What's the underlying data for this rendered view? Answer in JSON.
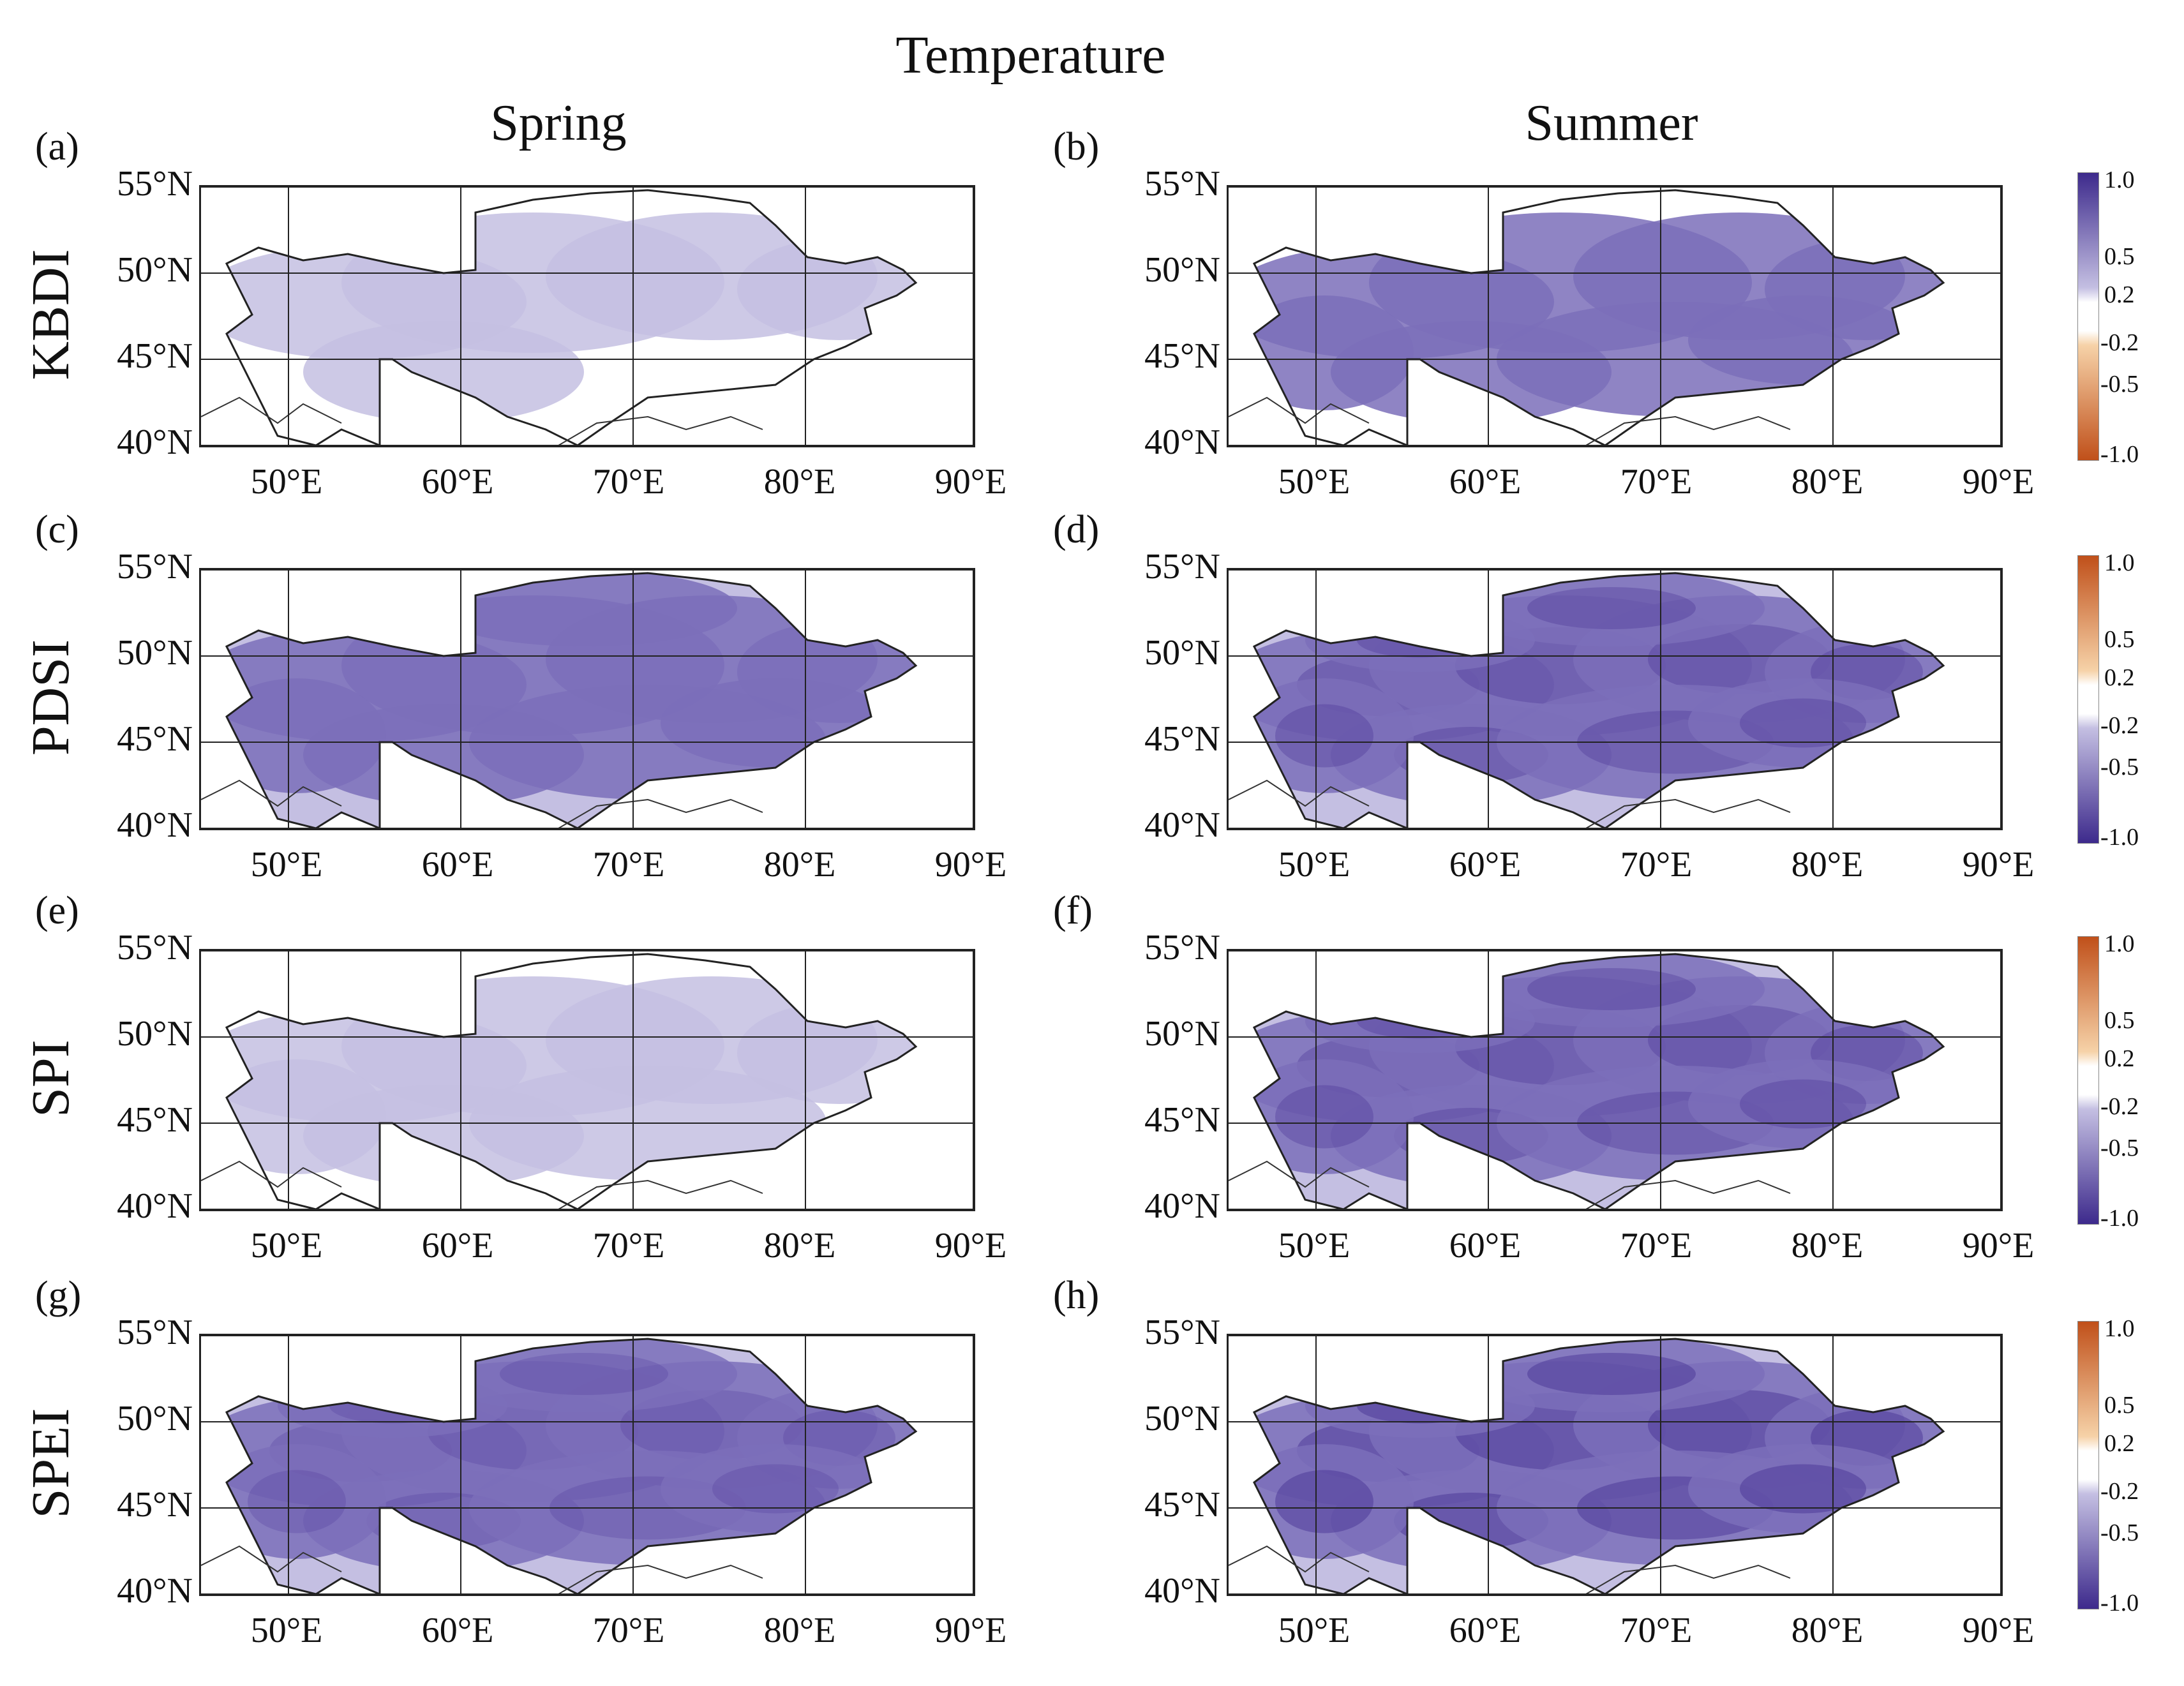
{
  "title": "Temperature",
  "columns": [
    "Spring",
    "Summer"
  ],
  "rows": [
    "KBDI",
    "PDSI",
    "SPI",
    "SPEI"
  ],
  "panels": [
    {
      "label": "(a)",
      "index": "KBDI",
      "season": "Spring",
      "intensity": 0.35,
      "coverage": 0.45
    },
    {
      "label": "(b)",
      "index": "KBDI",
      "season": "Summer",
      "intensity": 0.55,
      "coverage": 0.8
    },
    {
      "label": "(c)",
      "index": "PDSI",
      "season": "Spring",
      "intensity": 0.6,
      "coverage": 0.9
    },
    {
      "label": "(d)",
      "index": "PDSI",
      "season": "Summer",
      "intensity": 0.75,
      "coverage": 1.0
    },
    {
      "label": "(e)",
      "index": "SPI",
      "season": "Spring",
      "intensity": 0.4,
      "coverage": 0.7
    },
    {
      "label": "(f)",
      "index": "SPI",
      "season": "Summer",
      "intensity": 0.75,
      "coverage": 1.0
    },
    {
      "label": "(g)",
      "index": "SPEI",
      "season": "Spring",
      "intensity": 0.65,
      "coverage": 1.0
    },
    {
      "label": "(h)",
      "index": "SPEI",
      "season": "Summer",
      "intensity": 0.9,
      "coverage": 1.0
    }
  ],
  "lat_ticks": [
    "55°N",
    "50°N",
    "45°N",
    "40°N"
  ],
  "lon_ticks": [
    "50°E",
    "60°E",
    "70°E",
    "80°E",
    "90°E"
  ],
  "colorbars": [
    {
      "ticks_top": [
        "1.0",
        "0.5",
        "0.2"
      ],
      "ticks_bottom": [
        "-0.2",
        "-0.5",
        "-1.0"
      ],
      "top_color": "#3d2a8c",
      "bottom_color": "#c0501a"
    },
    {
      "ticks_top": [
        "1.0",
        "0.5",
        "0.2"
      ],
      "ticks_bottom": [
        "-0.2",
        "-0.5",
        "-1.0"
      ],
      "top_color": "#c0501a",
      "bottom_color": "#3d2a8c"
    },
    {
      "ticks_top": [
        "1.0",
        "0.5",
        "0.2"
      ],
      "ticks_bottom": [
        "-0.2",
        "-0.5",
        "-1.0"
      ],
      "top_color": "#c0501a",
      "bottom_color": "#3d2a8c"
    },
    {
      "ticks_top": [
        "1.0",
        "0.5",
        "0.2"
      ],
      "ticks_bottom": [
        "-0.2",
        "-0.5",
        "-1.0"
      ],
      "top_color": "#c0501a",
      "bottom_color": "#3d2a8c"
    }
  ],
  "colors": {
    "purple_dark": "#4a3596",
    "purple_mid": "#7b6fba",
    "purple_light": "#c4bfe2",
    "orange_dark": "#c0501a",
    "orange_light": "#f6d2a8"
  }
}
